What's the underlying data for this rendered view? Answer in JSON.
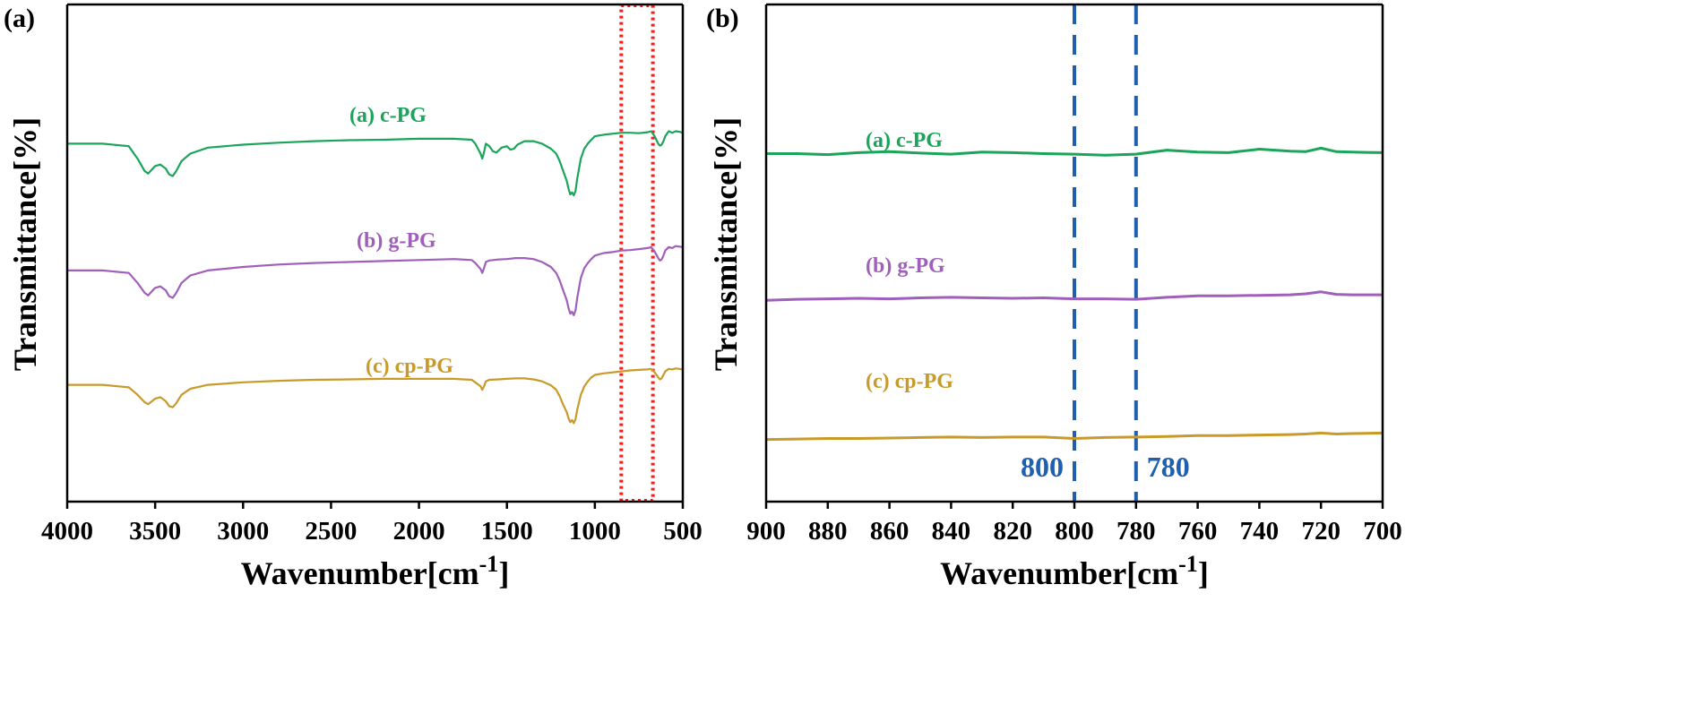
{
  "chart_data": [
    {
      "panel_label": "(a)",
      "type": "line",
      "title": "",
      "xlabel": "Wavenumber[cm",
      "xlabel_sup": "-1",
      "xlabel_close": "]",
      "ylabel": "Transmittance[%]",
      "xlim": [
        4000,
        500
      ],
      "ylim": [
        0,
        1
      ],
      "xticks": [
        4000,
        3500,
        3000,
        2500,
        2000,
        1500,
        1000,
        500
      ],
      "xtick_labels": [
        "4000",
        "3500",
        "3000",
        "2500",
        "2000",
        "1500",
        "1000",
        "500"
      ],
      "yticks_shown": false,
      "highlight_region": {
        "from": 850,
        "to": 670,
        "color": "#ff1a1a",
        "style": "dotted"
      },
      "series": [
        {
          "name": "(a) c-PG",
          "color": "#1aa55a",
          "x": [
            4000,
            3800,
            3650,
            3600,
            3560,
            3540,
            3500,
            3470,
            3440,
            3420,
            3400,
            3380,
            3350,
            3300,
            3200,
            3000,
            2800,
            2600,
            2400,
            2200,
            2000,
            1800,
            1700,
            1680,
            1650,
            1640,
            1630,
            1620,
            1600,
            1580,
            1560,
            1530,
            1500,
            1480,
            1460,
            1440,
            1400,
            1350,
            1300,
            1250,
            1220,
            1200,
            1180,
            1160,
            1150,
            1140,
            1130,
            1120,
            1110,
            1100,
            1080,
            1060,
            1040,
            1020,
            1000,
            950,
            900,
            850,
            800,
            750,
            700,
            680,
            660,
            640,
            630,
            620,
            610,
            600,
            580,
            560,
            540,
            520,
            500
          ],
          "y": [
            0.72,
            0.72,
            0.715,
            0.69,
            0.665,
            0.66,
            0.675,
            0.678,
            0.67,
            0.658,
            0.655,
            0.665,
            0.685,
            0.7,
            0.712,
            0.718,
            0.722,
            0.725,
            0.727,
            0.728,
            0.73,
            0.73,
            0.728,
            0.72,
            0.7,
            0.69,
            0.703,
            0.72,
            0.715,
            0.705,
            0.702,
            0.712,
            0.715,
            0.708,
            0.71,
            0.718,
            0.725,
            0.725,
            0.72,
            0.71,
            0.7,
            0.685,
            0.665,
            0.645,
            0.63,
            0.618,
            0.622,
            0.616,
            0.625,
            0.65,
            0.69,
            0.71,
            0.72,
            0.728,
            0.735,
            0.738,
            0.74,
            0.742,
            0.742,
            0.741,
            0.743,
            0.745,
            0.735,
            0.72,
            0.716,
            0.718,
            0.725,
            0.735,
            0.745,
            0.742,
            0.745,
            0.744,
            0.742
          ]
        },
        {
          "name": "(b) g-PG",
          "color": "#9f5fba",
          "x": [
            4000,
            3800,
            3650,
            3600,
            3560,
            3540,
            3500,
            3470,
            3440,
            3420,
            3400,
            3380,
            3350,
            3300,
            3200,
            3000,
            2800,
            2600,
            2400,
            2200,
            2000,
            1800,
            1700,
            1680,
            1650,
            1640,
            1630,
            1620,
            1600,
            1550,
            1500,
            1450,
            1400,
            1350,
            1300,
            1250,
            1220,
            1200,
            1180,
            1160,
            1150,
            1140,
            1130,
            1120,
            1110,
            1100,
            1080,
            1060,
            1040,
            1020,
            1000,
            950,
            900,
            850,
            800,
            750,
            700,
            680,
            660,
            640,
            630,
            620,
            610,
            600,
            580,
            560,
            540,
            520,
            500
          ],
          "y": [
            0.465,
            0.465,
            0.46,
            0.44,
            0.42,
            0.415,
            0.43,
            0.433,
            0.425,
            0.413,
            0.41,
            0.42,
            0.44,
            0.455,
            0.465,
            0.472,
            0.477,
            0.48,
            0.482,
            0.484,
            0.486,
            0.488,
            0.486,
            0.48,
            0.468,
            0.46,
            0.47,
            0.482,
            0.485,
            0.487,
            0.488,
            0.49,
            0.49,
            0.488,
            0.482,
            0.472,
            0.46,
            0.445,
            0.425,
            0.405,
            0.39,
            0.378,
            0.382,
            0.375,
            0.385,
            0.41,
            0.45,
            0.47,
            0.48,
            0.488,
            0.495,
            0.5,
            0.502,
            0.505,
            0.506,
            0.508,
            0.51,
            0.512,
            0.503,
            0.49,
            0.485,
            0.487,
            0.495,
            0.505,
            0.512,
            0.51,
            0.514,
            0.513,
            0.512
          ]
        },
        {
          "name": "(c) cp-PG",
          "color": "#c89a2a",
          "x": [
            4000,
            3800,
            3650,
            3600,
            3560,
            3540,
            3500,
            3470,
            3440,
            3420,
            3400,
            3380,
            3350,
            3300,
            3200,
            3000,
            2800,
            2600,
            2400,
            2200,
            2000,
            1800,
            1700,
            1680,
            1650,
            1640,
            1630,
            1620,
            1600,
            1550,
            1500,
            1450,
            1400,
            1350,
            1300,
            1250,
            1220,
            1200,
            1180,
            1160,
            1150,
            1140,
            1130,
            1120,
            1110,
            1100,
            1080,
            1060,
            1040,
            1020,
            1000,
            950,
            900,
            850,
            800,
            750,
            700,
            680,
            660,
            640,
            630,
            620,
            610,
            600,
            580,
            560,
            540,
            520,
            500
          ],
          "y": [
            0.235,
            0.235,
            0.23,
            0.215,
            0.2,
            0.196,
            0.207,
            0.21,
            0.202,
            0.192,
            0.19,
            0.198,
            0.215,
            0.227,
            0.235,
            0.24,
            0.243,
            0.245,
            0.246,
            0.247,
            0.247,
            0.247,
            0.245,
            0.24,
            0.232,
            0.225,
            0.232,
            0.242,
            0.245,
            0.246,
            0.247,
            0.248,
            0.248,
            0.246,
            0.242,
            0.234,
            0.225,
            0.212,
            0.195,
            0.18,
            0.168,
            0.16,
            0.164,
            0.158,
            0.166,
            0.185,
            0.215,
            0.232,
            0.242,
            0.25,
            0.255,
            0.258,
            0.26,
            0.262,
            0.264,
            0.265,
            0.266,
            0.267,
            0.26,
            0.25,
            0.246,
            0.248,
            0.255,
            0.262,
            0.267,
            0.266,
            0.268,
            0.267,
            0.266
          ]
        }
      ]
    },
    {
      "panel_label": "(b)",
      "type": "line",
      "title": "",
      "xlabel": "Wavenumber[cm",
      "xlabel_sup": "-1",
      "xlabel_close": "]",
      "ylabel": "Transmittance[%]",
      "xlim": [
        900,
        700
      ],
      "ylim": [
        0,
        1
      ],
      "xticks": [
        900,
        880,
        860,
        840,
        820,
        800,
        780,
        760,
        740,
        720,
        700
      ],
      "xtick_labels": [
        "900",
        "880",
        "860",
        "840",
        "820",
        "800",
        "780",
        "760",
        "740",
        "720",
        "700"
      ],
      "yticks_shown": false,
      "reference_lines": [
        {
          "x": 800,
          "label": "800",
          "color": "#1f5fae"
        },
        {
          "x": 780,
          "label": "780",
          "color": "#1f5fae"
        }
      ],
      "series": [
        {
          "name": "(a) c-PG",
          "color": "#1aa55a",
          "x": [
            900,
            890,
            880,
            870,
            860,
            850,
            840,
            830,
            820,
            810,
            800,
            790,
            780,
            770,
            760,
            750,
            740,
            730,
            725,
            720,
            715,
            710,
            700
          ],
          "y": [
            0.7,
            0.7,
            0.698,
            0.702,
            0.704,
            0.701,
            0.699,
            0.703,
            0.702,
            0.7,
            0.699,
            0.697,
            0.699,
            0.707,
            0.703,
            0.702,
            0.709,
            0.705,
            0.704,
            0.711,
            0.704,
            0.703,
            0.702
          ]
        },
        {
          "name": "(b) g-PG",
          "color": "#9f5fba",
          "x": [
            900,
            890,
            880,
            870,
            860,
            850,
            840,
            830,
            820,
            810,
            800,
            790,
            780,
            770,
            760,
            750,
            740,
            730,
            725,
            720,
            715,
            710,
            700
          ],
          "y": [
            0.405,
            0.407,
            0.408,
            0.409,
            0.408,
            0.41,
            0.411,
            0.41,
            0.409,
            0.41,
            0.408,
            0.408,
            0.407,
            0.411,
            0.414,
            0.414,
            0.415,
            0.416,
            0.418,
            0.422,
            0.417,
            0.416,
            0.416
          ]
        },
        {
          "name": "(c) cp-PG",
          "color": "#c89a2a",
          "x": [
            900,
            890,
            880,
            870,
            860,
            850,
            840,
            830,
            820,
            810,
            800,
            790,
            780,
            770,
            760,
            750,
            740,
            730,
            725,
            720,
            715,
            710,
            700
          ],
          "y": [
            0.125,
            0.126,
            0.127,
            0.127,
            0.128,
            0.129,
            0.13,
            0.129,
            0.13,
            0.13,
            0.127,
            0.129,
            0.13,
            0.131,
            0.133,
            0.133,
            0.134,
            0.135,
            0.136,
            0.138,
            0.136,
            0.137,
            0.138
          ]
        }
      ]
    }
  ]
}
